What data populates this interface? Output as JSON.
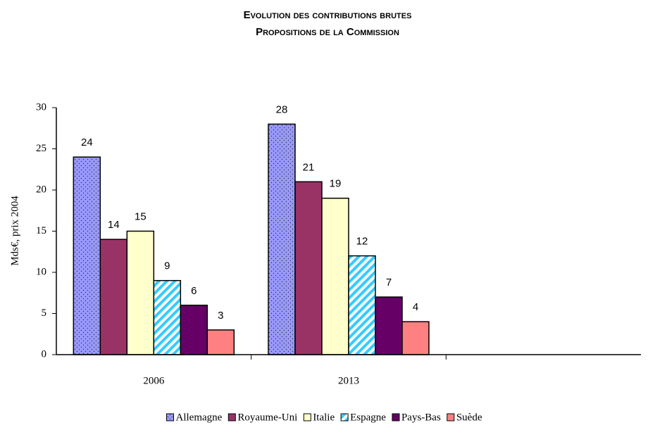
{
  "chart_data": {
    "type": "bar",
    "title": [
      "Evolution des contributions brutes",
      "Propositions de la Commission"
    ],
    "y_label": "Mds€, prix 2004",
    "categories": [
      "2006",
      "2013",
      null
    ],
    "series": [
      {
        "name": "Allemagne",
        "color": "#9999ff",
        "pattern": "dots",
        "values": [
          24,
          28,
          null
        ]
      },
      {
        "name": "Royaume-Uni",
        "color": "#993366",
        "values": [
          14,
          21,
          null
        ]
      },
      {
        "name": "Italie",
        "color": "#ffffcc",
        "values": [
          15,
          19,
          null
        ]
      },
      {
        "name": "Espagne",
        "color": "#ccffff",
        "pattern": "stripes",
        "values": [
          9,
          12,
          null
        ]
      },
      {
        "name": "Pays-Bas",
        "color": "#660066",
        "values": [
          6,
          7,
          null
        ]
      },
      {
        "name": "Suède",
        "color": "#ff8080",
        "values": [
          3,
          4,
          null
        ]
      }
    ],
    "ylim": [
      0,
      30
    ],
    "yticks": [
      0,
      5,
      10,
      15,
      20,
      25,
      30
    ],
    "grid": false,
    "legend": "bottom"
  }
}
